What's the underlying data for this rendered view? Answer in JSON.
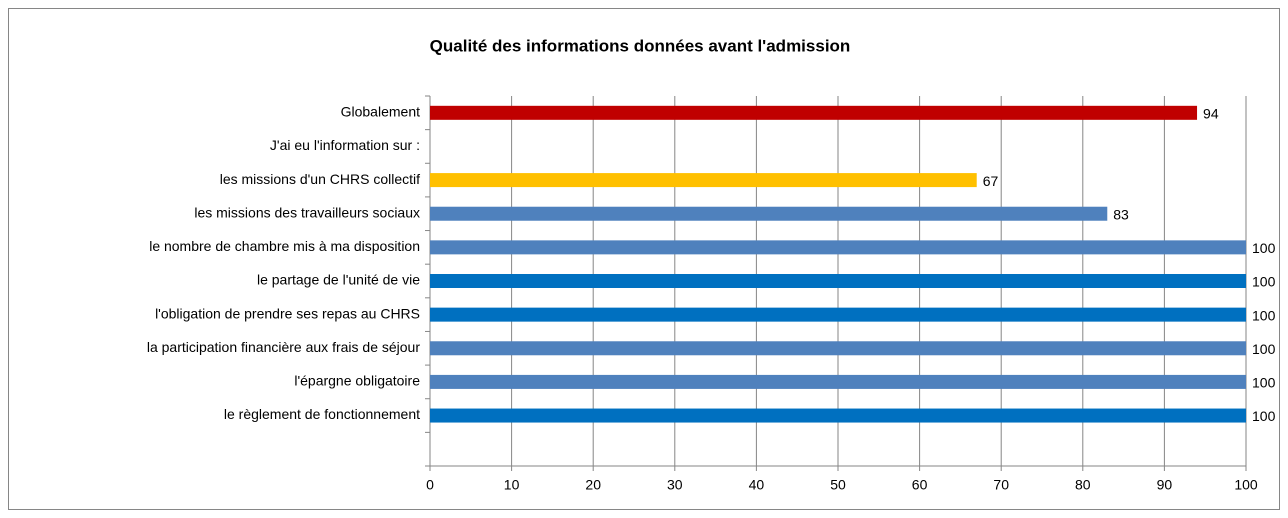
{
  "chart_data": {
    "type": "hbar",
    "title": "Qualité des informations données avant l'admission",
    "categories": [
      "Globalement",
      "J'ai eu l'information sur :",
      "les missions d'un CHRS collectif",
      "les missions des travailleurs sociaux",
      "le nombre de chambre mis à ma disposition",
      "le partage de l'unité de vie",
      "l'obligation de prendre ses repas au CHRS",
      "la participation financière aux frais de séjour",
      "l'épargne obligatoire",
      "le règlement de fonctionnement",
      null
    ],
    "values": [
      94,
      null,
      67,
      83,
      100,
      100,
      100,
      100,
      100,
      100,
      null
    ],
    "colors": [
      "#c00000",
      null,
      "#ffc000",
      "#4f81bd",
      "#4f81bd",
      "#0070c0",
      "#0070c0",
      "#4f81bd",
      "#4f81bd",
      "#0070c0",
      null
    ],
    "xlim": [
      0,
      100
    ],
    "xticks": [
      0,
      10,
      20,
      30,
      40,
      50,
      60,
      70,
      80,
      90,
      100
    ],
    "grid": true
  }
}
